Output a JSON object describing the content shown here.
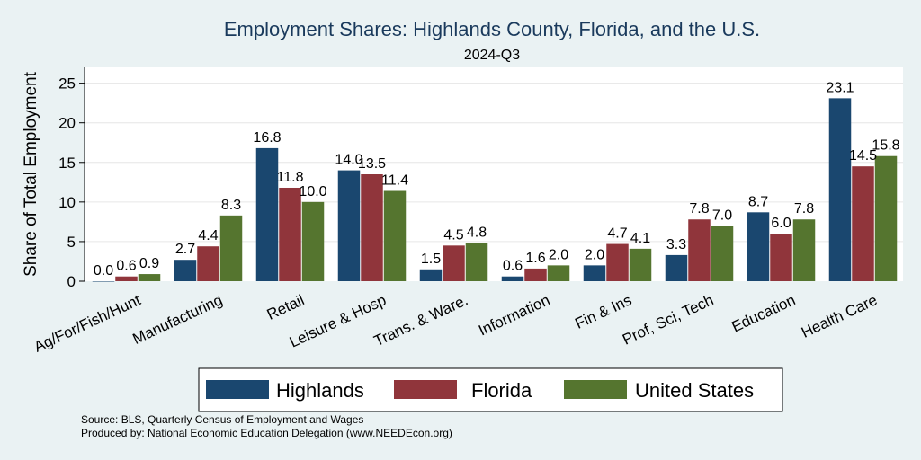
{
  "chart_data": {
    "type": "bar",
    "title": "Employment Shares: Highlands County, Florida, and the U.S.",
    "subtitle": "2024-Q3",
    "ylabel": "Share of Total Employment",
    "xlabel": "",
    "ylim": [
      0,
      27
    ],
    "yticks": [
      0,
      5,
      10,
      15,
      20,
      25
    ],
    "grid": true,
    "legend_position": "bottom",
    "categories": [
      "Ag/For/Fish/Hunt",
      "Manufacturing",
      "Retail",
      "Leisure & Hosp",
      "Trans. & Ware.",
      "Information",
      "Fin & Ins",
      "Prof, Sci, Tech",
      "Education",
      "Health Care"
    ],
    "series": [
      {
        "name": "Highlands",
        "color": "#1a476f",
        "values": [
          0.0,
          2.7,
          16.8,
          14.0,
          1.5,
          0.6,
          2.0,
          3.3,
          8.7,
          23.1
        ],
        "labels": [
          "0.0",
          "2.7",
          "16.8",
          "14.0",
          "1.5",
          "0.6",
          "2.0",
          "3.3",
          "8.7",
          "23.1"
        ]
      },
      {
        "name": "Florida",
        "color": "#90353b",
        "values": [
          0.6,
          4.4,
          11.8,
          13.5,
          4.5,
          1.6,
          4.7,
          7.8,
          6.0,
          14.5
        ],
        "labels": [
          "0.6",
          "4.4",
          "11.8",
          "13.5",
          "4.5",
          "1.6",
          "4.7",
          "7.8",
          "6.0",
          "14.5"
        ]
      },
      {
        "name": "United States",
        "color": "#55752f",
        "values": [
          0.9,
          8.3,
          10.0,
          11.4,
          4.8,
          2.0,
          4.1,
          7.0,
          7.8,
          15.8
        ],
        "labels": [
          "0.9",
          "8.3",
          "10.0",
          "11.4",
          "4.8",
          "2.0",
          "4.1",
          "7.0",
          "7.8",
          "15.8"
        ]
      }
    ]
  },
  "footer": {
    "source": "Source: BLS, Quarterly Census of Employment and Wages",
    "produced_by": "Produced by: National Economic Education Delegation (www.NEEDEcon.org)"
  }
}
